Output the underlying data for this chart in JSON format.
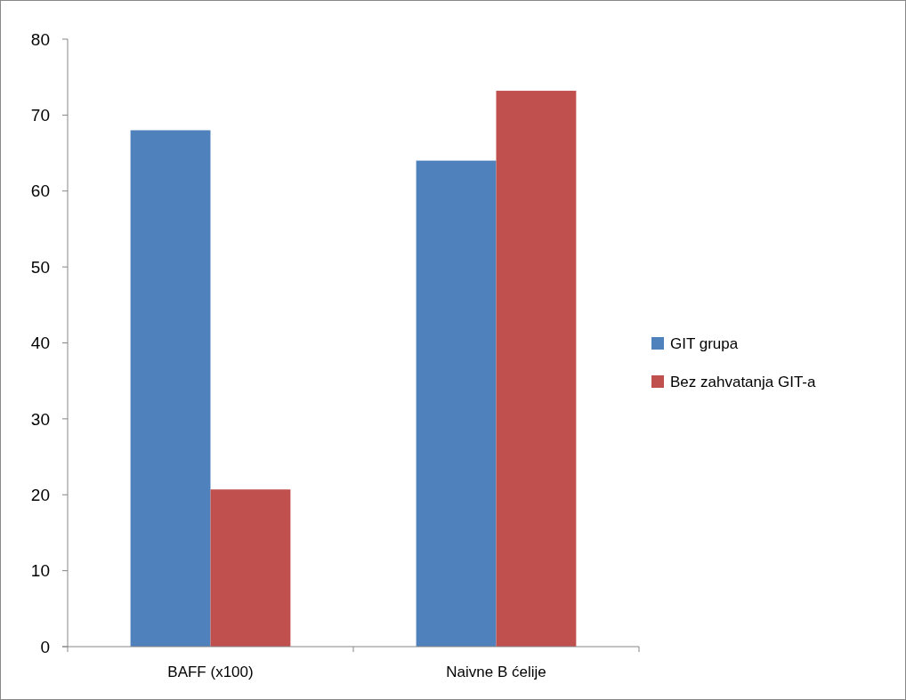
{
  "chart_data": {
    "type": "bar",
    "categories": [
      "BAFF (x100)",
      "Naivne B ćelije"
    ],
    "series": [
      {
        "name": "GIT grupa",
        "color": "#4f81bd",
        "values": [
          68,
          64
        ]
      },
      {
        "name": "Bez zahvatanja GIT-a",
        "color": "#c0504d",
        "values": [
          20.7,
          73.2
        ]
      }
    ],
    "ylim": [
      0,
      80
    ],
    "yticks": [
      0,
      10,
      20,
      30,
      40,
      50,
      60,
      70,
      80
    ],
    "grid": false,
    "legend": "right"
  }
}
